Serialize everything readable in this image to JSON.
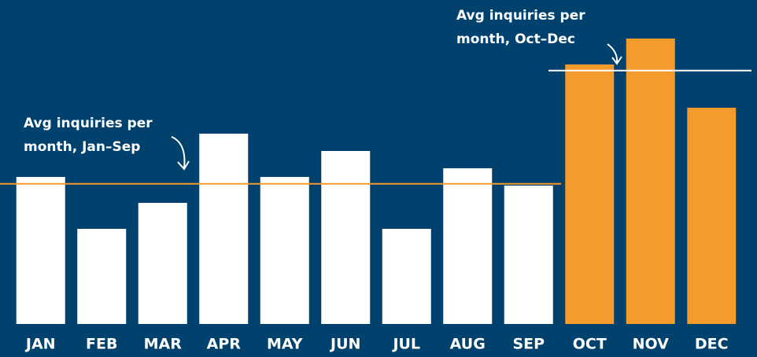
{
  "chart_data": {
    "type": "bar",
    "categories": [
      "JAN",
      "FEB",
      "MAR",
      "APR",
      "MAY",
      "JUN",
      "JUL",
      "AUG",
      "SEP",
      "OCT",
      "NOV",
      "DEC"
    ],
    "values": [
      17,
      11,
      14,
      22,
      17,
      20,
      11,
      18,
      16,
      30,
      33,
      25
    ],
    "colors": [
      "#ffffff",
      "#ffffff",
      "#ffffff",
      "#ffffff",
      "#ffffff",
      "#ffffff",
      "#ffffff",
      "#ffffff",
      "#ffffff",
      "#f59a2c",
      "#f59a2c",
      "#f59a2c"
    ],
    "ylim": [
      0,
      37
    ],
    "annotations": [
      {
        "text_lines": [
          "Avg inquiries per",
          "month, Jan–Sep"
        ],
        "value": 16.2,
        "color": "#f59a2c"
      },
      {
        "text_lines": [
          "Avg inquiries per",
          "month, Oct–Dec"
        ],
        "value": 29.3,
        "color": "#ffffff"
      }
    ]
  }
}
